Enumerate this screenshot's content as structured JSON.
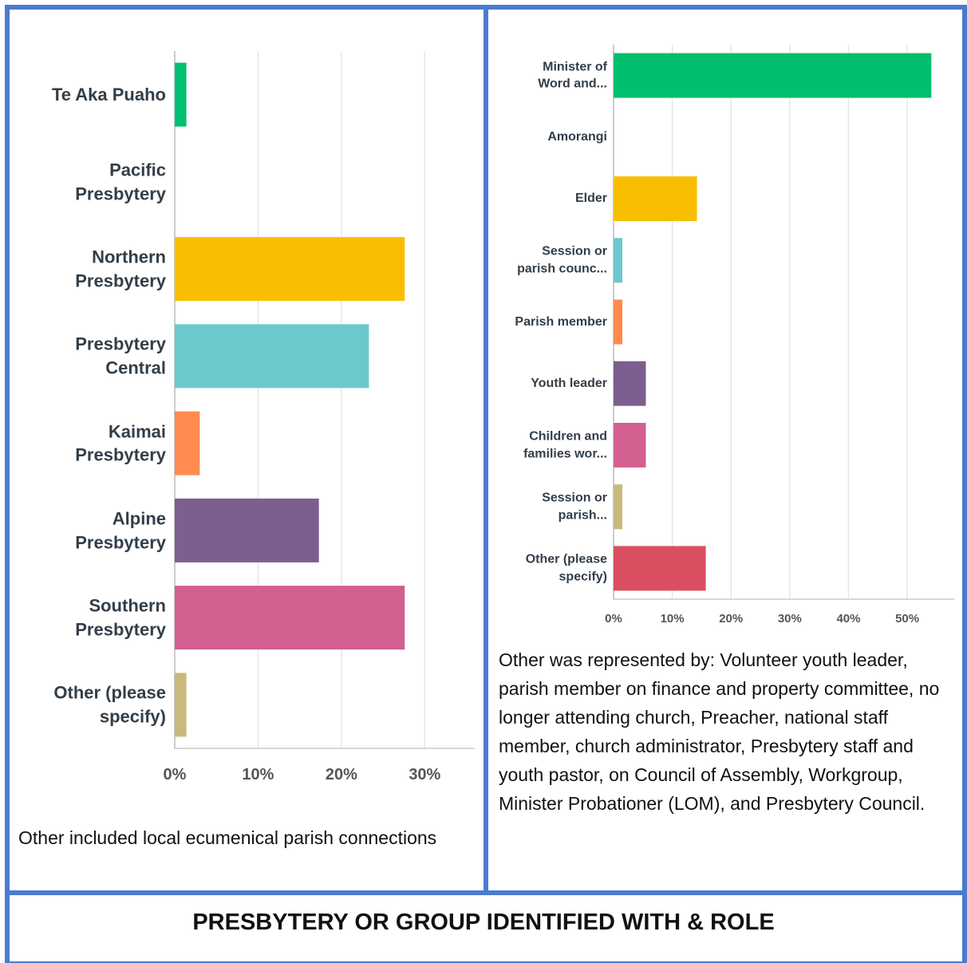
{
  "title": "PRESBYTERY OR GROUP IDENTIFIED WITH & ROLE",
  "chart_data": [
    {
      "type": "hbar",
      "categories": [
        "Te Aka Puaho",
        "Pacific\nPresbytery",
        "Northern\nPresbytery",
        "Presbytery\nCentral",
        "Kaimai\nPresbytery",
        "Alpine\nPresbytery",
        "Southern\nPresbytery",
        "Other (please\nspecify)"
      ],
      "values": [
        1.4,
        0,
        27.6,
        23.3,
        3.0,
        17.3,
        27.6,
        1.4
      ],
      "colors": [
        "#00bf6f",
        "#4ea3d9",
        "#f9be00",
        "#6bc8cd",
        "#ff8b4f",
        "#7d5e90",
        "#d25f90",
        "#c9b97c"
      ],
      "xlim": [
        0,
        36
      ],
      "xticks": [
        {
          "value": 0,
          "label": "0%"
        },
        {
          "value": 10,
          "label": "10%"
        },
        {
          "value": 20,
          "label": "20%"
        },
        {
          "value": 30,
          "label": "30%"
        }
      ],
      "grid": true,
      "caption": "Other included local ecumenical parish connections"
    },
    {
      "type": "hbar",
      "categories": [
        "Minister of\nWord and...",
        "Amorangi",
        "Elder",
        "Session or\nparish counc...",
        "Parish member",
        "Youth leader",
        "Children and\nfamilies wor...",
        "Session or\nparish...",
        "Other (please\nspecify)"
      ],
      "values": [
        54.1,
        0,
        14.2,
        1.5,
        1.5,
        5.5,
        5.5,
        1.5,
        15.7
      ],
      "colors": [
        "#00bf6f",
        "#4ea3d9",
        "#f9be00",
        "#6bc8cd",
        "#ff8b4f",
        "#7d5e90",
        "#d25f90",
        "#c9b97c",
        "#d94f61"
      ],
      "xlim": [
        0,
        58
      ],
      "xticks": [
        {
          "value": 0,
          "label": "0%"
        },
        {
          "value": 10,
          "label": "10%"
        },
        {
          "value": 20,
          "label": "20%"
        },
        {
          "value": 30,
          "label": "30%"
        },
        {
          "value": 40,
          "label": "40%"
        },
        {
          "value": 50,
          "label": "50%"
        }
      ],
      "grid": true,
      "caption": "Other was represented by:  Volunteer youth leader, parish member on finance and property committee, no longer attending church, Preacher, national staff member, church administrator, Presbytery staff and youth pastor, on Council of Assembly, Workgroup, Minister Probationer (LOM),  and Presbytery Council."
    }
  ]
}
